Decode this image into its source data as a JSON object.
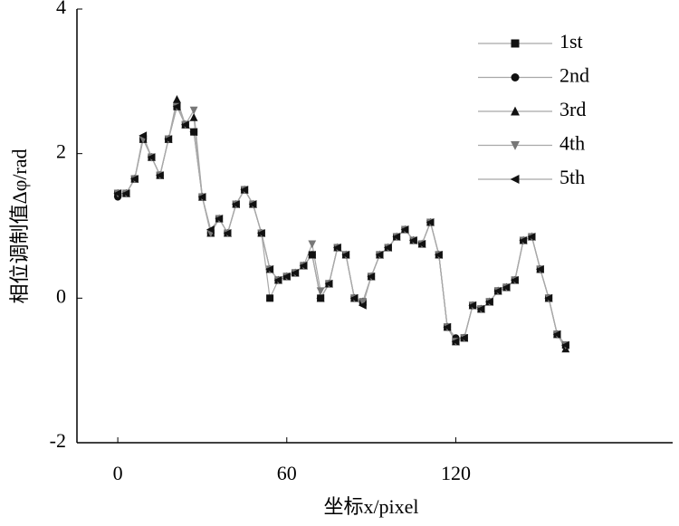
{
  "chart_data": {
    "type": "line",
    "xlabel": "坐标x/pixel",
    "ylabel": "相位调制值Δφ/rad",
    "x": [
      0,
      3,
      6,
      9,
      12,
      15,
      18,
      21,
      24,
      27,
      30,
      33,
      36,
      39,
      42,
      45,
      48,
      51,
      54,
      57,
      60,
      63,
      66,
      69,
      72,
      75,
      78,
      81,
      84,
      87,
      90,
      93,
      96,
      99,
      102,
      105,
      108,
      111,
      114,
      117,
      120,
      123,
      126,
      129,
      132,
      135,
      138,
      141,
      144,
      147,
      150,
      153,
      156,
      159
    ],
    "xlim": [
      -14.5,
      197
    ],
    "xticks": [
      0,
      60,
      120
    ],
    "ylim": [
      -2,
      4
    ],
    "yticks": [
      -2,
      0,
      2,
      4
    ],
    "line_color": "#a8a8a8",
    "legend": "upper right",
    "series": [
      {
        "name": "1st",
        "marker": "square",
        "color": "#111111",
        "values": [
          1.45,
          1.45,
          1.65,
          2.2,
          1.95,
          1.7,
          2.2,
          2.65,
          2.4,
          2.3,
          1.4,
          0.9,
          1.1,
          0.9,
          1.3,
          1.5,
          1.3,
          0.9,
          0.0,
          0.25,
          0.3,
          0.35,
          0.45,
          0.6,
          0.0,
          0.2,
          0.7,
          0.6,
          0.0,
          -0.05,
          0.3,
          0.6,
          0.7,
          0.85,
          0.95,
          0.8,
          0.75,
          1.05,
          0.6,
          -0.4,
          -0.6,
          -0.55,
          -0.1,
          -0.15,
          -0.05,
          0.1,
          0.15,
          0.25,
          0.8,
          0.85,
          0.4,
          0.0,
          -0.5,
          -0.65
        ]
      },
      {
        "name": "2nd",
        "marker": "circle",
        "color": "#111111",
        "values": [
          1.4,
          1.45,
          1.65,
          2.2,
          1.95,
          1.7,
          2.2,
          2.7,
          2.4,
          2.3,
          1.4,
          0.9,
          1.1,
          0.9,
          1.3,
          1.5,
          1.3,
          0.9,
          0.4,
          0.25,
          0.3,
          0.35,
          0.45,
          0.6,
          0.0,
          0.2,
          0.7,
          0.6,
          0.0,
          -0.05,
          0.3,
          0.6,
          0.7,
          0.85,
          0.95,
          0.8,
          0.75,
          1.05,
          0.6,
          -0.4,
          -0.55,
          -0.55,
          -0.1,
          -0.15,
          -0.05,
          0.1,
          0.15,
          0.25,
          0.8,
          0.85,
          0.4,
          0.0,
          -0.5,
          -0.65
        ]
      },
      {
        "name": "3rd",
        "marker": "triangle-up",
        "color": "#111111",
        "values": [
          1.45,
          1.45,
          1.65,
          2.2,
          1.95,
          1.7,
          2.2,
          2.75,
          2.4,
          2.5,
          1.4,
          0.9,
          1.1,
          0.9,
          1.3,
          1.5,
          1.3,
          0.9,
          0.4,
          0.25,
          0.3,
          0.35,
          0.45,
          0.6,
          0.0,
          0.2,
          0.7,
          0.6,
          0.0,
          -0.05,
          0.3,
          0.6,
          0.7,
          0.85,
          0.95,
          0.8,
          0.75,
          1.05,
          0.6,
          -0.4,
          -0.6,
          -0.55,
          -0.1,
          -0.15,
          -0.05,
          0.1,
          0.15,
          0.25,
          0.8,
          0.85,
          0.4,
          0.0,
          -0.5,
          -0.7
        ]
      },
      {
        "name": "4th",
        "marker": "triangle-down",
        "color": "#777777",
        "values": [
          1.45,
          1.45,
          1.65,
          2.2,
          1.95,
          1.7,
          2.2,
          2.65,
          2.4,
          2.6,
          1.4,
          0.9,
          1.1,
          0.9,
          1.3,
          1.5,
          1.3,
          0.9,
          0.4,
          0.25,
          0.3,
          0.35,
          0.45,
          0.75,
          0.1,
          0.2,
          0.7,
          0.6,
          0.0,
          -0.05,
          0.3,
          0.6,
          0.7,
          0.85,
          0.95,
          0.8,
          0.75,
          1.05,
          0.6,
          -0.4,
          -0.6,
          -0.55,
          -0.1,
          -0.15,
          -0.05,
          0.1,
          0.15,
          0.25,
          0.8,
          0.85,
          0.4,
          0.0,
          -0.5,
          -0.65
        ]
      },
      {
        "name": "5th",
        "marker": "triangle-left",
        "color": "#111111",
        "values": [
          1.45,
          1.45,
          1.65,
          2.25,
          1.95,
          1.7,
          2.2,
          2.65,
          2.4,
          2.3,
          1.4,
          0.95,
          1.1,
          0.9,
          1.3,
          1.5,
          1.3,
          0.9,
          0.4,
          0.25,
          0.3,
          0.35,
          0.45,
          0.6,
          0.0,
          0.2,
          0.7,
          0.6,
          0.0,
          -0.1,
          0.3,
          0.6,
          0.7,
          0.85,
          0.95,
          0.8,
          0.75,
          1.05,
          0.6,
          -0.4,
          -0.6,
          -0.55,
          -0.1,
          -0.15,
          -0.05,
          0.1,
          0.15,
          0.25,
          0.8,
          0.85,
          0.4,
          0.0,
          -0.5,
          -0.65
        ]
      }
    ]
  }
}
